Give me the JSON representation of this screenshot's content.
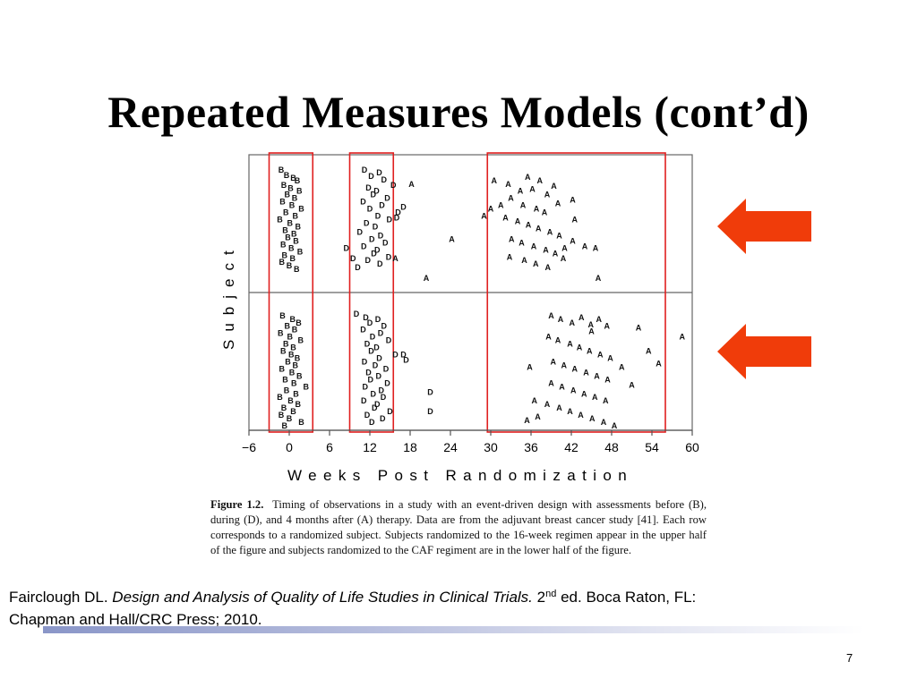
{
  "slide": {
    "title": "Repeated Measures Models (cont’d)",
    "page_number": "7"
  },
  "citation": {
    "authors": "Fairclough DL.",
    "book_title": "Design and Analysis of Quality of Life Studies in Clinical Trials.",
    "edition_number": "2",
    "edition_sup": "nd",
    "publisher_line1": " ed. Boca Raton, FL:",
    "publisher_line2": "Chapman and Hall/CRC Press; 2010."
  },
  "figure": {
    "caption_label": "Figure 1.2.",
    "caption_text": "Timing of observations in a study with an event-driven design with assessments before (B), during (D), and 4 months after (A) therapy. Data are from the adjuvant breast cancer study [41]. Each row corresponds to a randomized subject. Subjects randomized to the 16-week regimen appear in the upper half of the figure and subjects randomized to the CAF regiment are in the lower half of the figure."
  },
  "colors": {
    "highlight_box": "#e02020",
    "arrow": "#f03c0a",
    "rule_start": "#8a96c8"
  },
  "chart_data": {
    "type": "scatter",
    "title": "",
    "xlabel": "Weeks Post Randomization",
    "ylabel": "Subject",
    "xlim": [
      -6,
      60
    ],
    "x_ticks": [
      -6,
      0,
      6,
      12,
      18,
      24,
      30,
      36,
      42,
      48,
      54,
      60
    ],
    "x_tick_labels": [
      "−6",
      "0",
      "6",
      "12",
      "18",
      "24",
      "30",
      "36",
      "42",
      "48",
      "54",
      "60"
    ],
    "panels": [
      "upper (16-week regimen)",
      "lower (CAF regimen)"
    ],
    "markers": [
      "B",
      "D",
      "A"
    ],
    "grid": false,
    "highlight_boxes_weeks": [
      [
        -3,
        3.5
      ],
      [
        9,
        15.5
      ],
      [
        29.5,
        56
      ]
    ],
    "series": [
      {
        "name": "B",
        "values": [
          {
            "x": -1.2,
            "y": 18
          },
          {
            "x": -0.4,
            "y": 24
          },
          {
            "x": 0.6,
            "y": 27
          },
          {
            "x": 1.2,
            "y": 30
          },
          {
            "x": -0.8,
            "y": 35
          },
          {
            "x": 0.2,
            "y": 39
          },
          {
            "x": 1.5,
            "y": 42
          },
          {
            "x": -0.3,
            "y": 46
          },
          {
            "x": 0.8,
            "y": 50
          },
          {
            "x": -1.0,
            "y": 54
          },
          {
            "x": 0.4,
            "y": 58
          },
          {
            "x": 1.8,
            "y": 62
          },
          {
            "x": -0.5,
            "y": 66
          },
          {
            "x": 0.9,
            "y": 70
          },
          {
            "x": -1.4,
            "y": 74
          },
          {
            "x": 0.1,
            "y": 78
          },
          {
            "x": 1.3,
            "y": 82
          },
          {
            "x": -0.6,
            "y": 86
          },
          {
            "x": 0.7,
            "y": 90
          },
          {
            "x": -0.2,
            "y": 94
          },
          {
            "x": 1.0,
            "y": 98
          },
          {
            "x": -0.9,
            "y": 102
          },
          {
            "x": 0.3,
            "y": 106
          },
          {
            "x": 1.6,
            "y": 110
          },
          {
            "x": -0.7,
            "y": 114
          },
          {
            "x": 0.5,
            "y": 118
          },
          {
            "x": -1.1,
            "y": 122
          },
          {
            "x": 0.0,
            "y": 126
          },
          {
            "x": 1.1,
            "y": 130
          },
          {
            "x": -1.0,
            "y": 182
          },
          {
            "x": 0.5,
            "y": 186
          },
          {
            "x": 1.4,
            "y": 190
          },
          {
            "x": -0.3,
            "y": 194
          },
          {
            "x": 0.8,
            "y": 198
          },
          {
            "x": -1.3,
            "y": 202
          },
          {
            "x": 0.1,
            "y": 206
          },
          {
            "x": 1.7,
            "y": 210
          },
          {
            "x": -0.5,
            "y": 214
          },
          {
            "x": 0.6,
            "y": 218
          },
          {
            "x": -0.9,
            "y": 222
          },
          {
            "x": 0.3,
            "y": 226
          },
          {
            "x": 1.2,
            "y": 230
          },
          {
            "x": -0.2,
            "y": 234
          },
          {
            "x": 0.9,
            "y": 238
          },
          {
            "x": -1.1,
            "y": 242
          },
          {
            "x": 0.4,
            "y": 246
          },
          {
            "x": 1.5,
            "y": 250
          },
          {
            "x": -0.6,
            "y": 254
          },
          {
            "x": 0.7,
            "y": 258
          },
          {
            "x": 2.5,
            "y": 262
          },
          {
            "x": -0.4,
            "y": 266
          },
          {
            "x": 1.0,
            "y": 270
          },
          {
            "x": -1.4,
            "y": 274
          },
          {
            "x": 0.2,
            "y": 278
          },
          {
            "x": 1.3,
            "y": 282
          },
          {
            "x": -0.8,
            "y": 286
          },
          {
            "x": 0.6,
            "y": 290
          },
          {
            "x": -1.2,
            "y": 294
          },
          {
            "x": 0.0,
            "y": 298
          },
          {
            "x": 1.8,
            "y": 302
          },
          {
            "x": -0.7,
            "y": 306
          }
        ]
      },
      {
        "name": "D",
        "values": [
          {
            "x": 11.2,
            "y": 18
          },
          {
            "x": 13.4,
            "y": 21
          },
          {
            "x": 12.2,
            "y": 25
          },
          {
            "x": 14.1,
            "y": 29
          },
          {
            "x": 15.5,
            "y": 35
          },
          {
            "x": 11.8,
            "y": 38
          },
          {
            "x": 13.0,
            "y": 42
          },
          {
            "x": 12.5,
            "y": 46
          },
          {
            "x": 14.6,
            "y": 50
          },
          {
            "x": 11.0,
            "y": 54
          },
          {
            "x": 13.8,
            "y": 58
          },
          {
            "x": 12.0,
            "y": 62
          },
          {
            "x": 16.2,
            "y": 66
          },
          {
            "x": 13.2,
            "y": 70
          },
          {
            "x": 14.9,
            "y": 74
          },
          {
            "x": 11.5,
            "y": 78
          },
          {
            "x": 12.8,
            "y": 82
          },
          {
            "x": 10.5,
            "y": 88
          },
          {
            "x": 13.6,
            "y": 92
          },
          {
            "x": 12.3,
            "y": 96
          },
          {
            "x": 14.3,
            "y": 100
          },
          {
            "x": 11.1,
            "y": 104
          },
          {
            "x": 13.1,
            "y": 108
          },
          {
            "x": 12.6,
            "y": 112
          },
          {
            "x": 14.8,
            "y": 116
          },
          {
            "x": 11.7,
            "y": 120
          },
          {
            "x": 13.5,
            "y": 124
          },
          {
            "x": 10.2,
            "y": 128
          },
          {
            "x": 17.0,
            "y": 60
          },
          {
            "x": 16.0,
            "y": 72
          },
          {
            "x": 8.5,
            "y": 106
          },
          {
            "x": 9.5,
            "y": 118
          },
          {
            "x": 10.0,
            "y": 180
          },
          {
            "x": 11.4,
            "y": 184
          },
          {
            "x": 13.2,
            "y": 186
          },
          {
            "x": 12.0,
            "y": 190
          },
          {
            "x": 14.1,
            "y": 194
          },
          {
            "x": 11.0,
            "y": 198
          },
          {
            "x": 13.6,
            "y": 202
          },
          {
            "x": 12.4,
            "y": 206
          },
          {
            "x": 14.8,
            "y": 210
          },
          {
            "x": 11.6,
            "y": 214
          },
          {
            "x": 13.0,
            "y": 218
          },
          {
            "x": 12.2,
            "y": 222
          },
          {
            "x": 15.8,
            "y": 226
          },
          {
            "x": 13.4,
            "y": 230
          },
          {
            "x": 11.2,
            "y": 234
          },
          {
            "x": 12.8,
            "y": 238
          },
          {
            "x": 14.4,
            "y": 242
          },
          {
            "x": 11.8,
            "y": 246
          },
          {
            "x": 13.3,
            "y": 250
          },
          {
            "x": 12.1,
            "y": 254
          },
          {
            "x": 14.6,
            "y": 258
          },
          {
            "x": 11.3,
            "y": 262
          },
          {
            "x": 13.7,
            "y": 266
          },
          {
            "x": 12.5,
            "y": 270
          },
          {
            "x": 14.0,
            "y": 274
          },
          {
            "x": 11.1,
            "y": 278
          },
          {
            "x": 13.1,
            "y": 282
          },
          {
            "x": 12.7,
            "y": 286
          },
          {
            "x": 15.0,
            "y": 290
          },
          {
            "x": 11.6,
            "y": 294
          },
          {
            "x": 13.9,
            "y": 298
          },
          {
            "x": 12.3,
            "y": 302
          },
          {
            "x": 17.0,
            "y": 226
          },
          {
            "x": 17.4,
            "y": 232
          },
          {
            "x": 21.0,
            "y": 268
          },
          {
            "x": 21.0,
            "y": 290
          }
        ]
      },
      {
        "name": "A",
        "values": [
          {
            "x": 18.2,
            "y": 34
          },
          {
            "x": 20.4,
            "y": 140
          },
          {
            "x": 24.2,
            "y": 96
          },
          {
            "x": 15.8,
            "y": 118
          },
          {
            "x": 30.0,
            "y": 62
          },
          {
            "x": 31.5,
            "y": 58
          },
          {
            "x": 32.6,
            "y": 34
          },
          {
            "x": 34.4,
            "y": 42
          },
          {
            "x": 35.5,
            "y": 26
          },
          {
            "x": 36.2,
            "y": 40
          },
          {
            "x": 37.3,
            "y": 30
          },
          {
            "x": 38.4,
            "y": 46
          },
          {
            "x": 33.0,
            "y": 50
          },
          {
            "x": 34.8,
            "y": 58
          },
          {
            "x": 36.8,
            "y": 62
          },
          {
            "x": 38.0,
            "y": 66
          },
          {
            "x": 39.4,
            "y": 36
          },
          {
            "x": 40.0,
            "y": 56
          },
          {
            "x": 32.2,
            "y": 72
          },
          {
            "x": 34.0,
            "y": 76
          },
          {
            "x": 35.6,
            "y": 80
          },
          {
            "x": 37.1,
            "y": 84
          },
          {
            "x": 38.8,
            "y": 88
          },
          {
            "x": 40.2,
            "y": 92
          },
          {
            "x": 33.1,
            "y": 96
          },
          {
            "x": 34.6,
            "y": 100
          },
          {
            "x": 36.4,
            "y": 104
          },
          {
            "x": 38.2,
            "y": 108
          },
          {
            "x": 39.6,
            "y": 112
          },
          {
            "x": 41.0,
            "y": 106
          },
          {
            "x": 32.8,
            "y": 116
          },
          {
            "x": 35.0,
            "y": 120
          },
          {
            "x": 36.7,
            "y": 124
          },
          {
            "x": 38.5,
            "y": 128
          },
          {
            "x": 40.8,
            "y": 118
          },
          {
            "x": 42.2,
            "y": 52
          },
          {
            "x": 42.5,
            "y": 74
          },
          {
            "x": 42.2,
            "y": 98
          },
          {
            "x": 44.0,
            "y": 104
          },
          {
            "x": 45.6,
            "y": 106
          },
          {
            "x": 46.0,
            "y": 140
          },
          {
            "x": 30.5,
            "y": 30
          },
          {
            "x": 29.0,
            "y": 70
          },
          {
            "x": 39.0,
            "y": 182
          },
          {
            "x": 40.4,
            "y": 186
          },
          {
            "x": 42.1,
            "y": 190
          },
          {
            "x": 43.5,
            "y": 184
          },
          {
            "x": 44.9,
            "y": 192
          },
          {
            "x": 46.1,
            "y": 186
          },
          {
            "x": 47.3,
            "y": 194
          },
          {
            "x": 45.0,
            "y": 200
          },
          {
            "x": 38.6,
            "y": 206
          },
          {
            "x": 40.0,
            "y": 210
          },
          {
            "x": 41.8,
            "y": 214
          },
          {
            "x": 43.2,
            "y": 218
          },
          {
            "x": 44.7,
            "y": 222
          },
          {
            "x": 46.3,
            "y": 226
          },
          {
            "x": 47.8,
            "y": 230
          },
          {
            "x": 39.3,
            "y": 234
          },
          {
            "x": 40.9,
            "y": 238
          },
          {
            "x": 42.5,
            "y": 242
          },
          {
            "x": 44.2,
            "y": 246
          },
          {
            "x": 45.8,
            "y": 250
          },
          {
            "x": 47.4,
            "y": 254
          },
          {
            "x": 39.0,
            "y": 258
          },
          {
            "x": 40.6,
            "y": 262
          },
          {
            "x": 42.3,
            "y": 266
          },
          {
            "x": 43.9,
            "y": 270
          },
          {
            "x": 45.5,
            "y": 274
          },
          {
            "x": 47.1,
            "y": 278
          },
          {
            "x": 38.4,
            "y": 282
          },
          {
            "x": 40.2,
            "y": 286
          },
          {
            "x": 41.8,
            "y": 290
          },
          {
            "x": 43.4,
            "y": 294
          },
          {
            "x": 45.1,
            "y": 298
          },
          {
            "x": 46.8,
            "y": 302
          },
          {
            "x": 48.4,
            "y": 306
          },
          {
            "x": 37.0,
            "y": 296
          },
          {
            "x": 35.4,
            "y": 300
          },
          {
            "x": 52.0,
            "y": 196
          },
          {
            "x": 53.5,
            "y": 222
          },
          {
            "x": 55.0,
            "y": 236
          },
          {
            "x": 58.5,
            "y": 206
          },
          {
            "x": 49.5,
            "y": 240
          },
          {
            "x": 51.0,
            "y": 260
          },
          {
            "x": 35.8,
            "y": 240
          },
          {
            "x": 36.5,
            "y": 278
          }
        ]
      }
    ]
  }
}
